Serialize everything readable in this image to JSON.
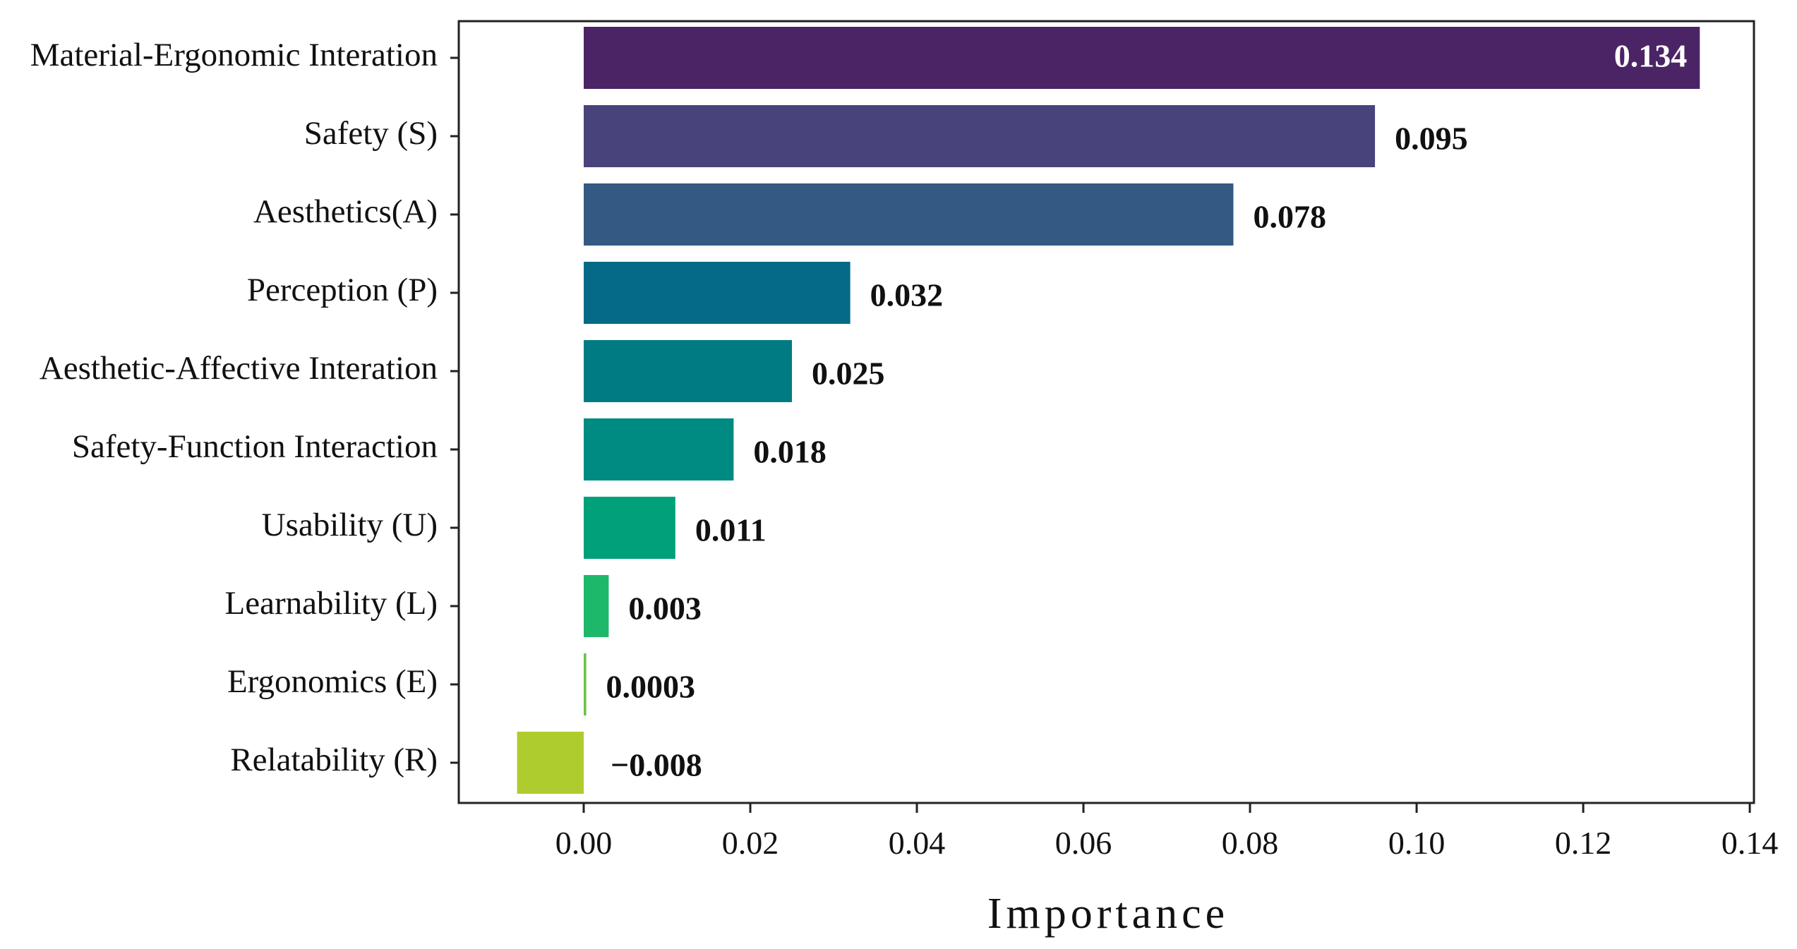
{
  "chart_data": {
    "type": "bar",
    "orientation": "horizontal",
    "title": "",
    "xlabel": "Importance",
    "ylabel": "",
    "xlim": [
      -0.015,
      0.1405
    ],
    "xticks": [
      0.0,
      0.02,
      0.04,
      0.06,
      0.08,
      0.1,
      0.12,
      0.14
    ],
    "xtick_labels": [
      "0.00",
      "0.02",
      "0.04",
      "0.06",
      "0.08",
      "0.10",
      "0.12",
      "0.14"
    ],
    "grid": false,
    "legend": "none",
    "categories": [
      "Material-Ergonomic Interation",
      "Safety (S)",
      "Aesthetics(A)",
      "Perception (P)",
      "Aesthetic-Affective Interation",
      "Safety-Function Interaction",
      "Usability (U)",
      "Learnability (L)",
      "Ergonomics (E)",
      "Relatability (R)"
    ],
    "values": [
      0.134,
      0.095,
      0.078,
      0.032,
      0.025,
      0.018,
      0.011,
      0.003,
      0.0003,
      -0.008
    ],
    "value_labels": [
      "0.134",
      "0.095",
      "0.078",
      "0.032",
      "0.025",
      "0.018",
      "0.011",
      "0.003",
      "0.0003",
      "−0.008"
    ],
    "colors": [
      "#4b2465",
      "#49437b",
      "#325a83",
      "#056a87",
      "#007b84",
      "#008b82",
      "#00a07a",
      "#1db86a",
      "#6cc04a",
      "#afcc2e"
    ]
  }
}
